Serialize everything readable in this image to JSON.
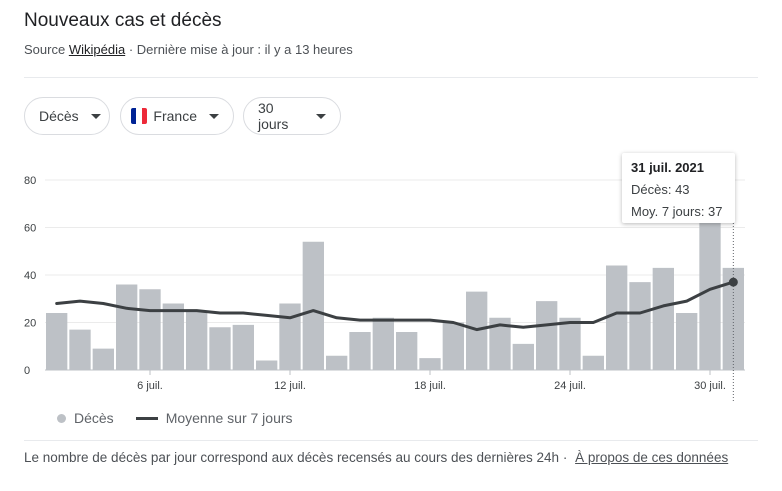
{
  "header": {
    "title": "Nouveaux cas et décès",
    "source_prefix": "Source",
    "source_link": "Wikipédia",
    "update_text": "· Dernière mise à jour : il y a 13 heures"
  },
  "filters": {
    "metric": "Décès",
    "country": "France",
    "period": "30 jours"
  },
  "colors": {
    "bar": "#bdc1c6",
    "line": "#3c4043",
    "flag_blue": "#002395",
    "flag_white": "#ffffff",
    "flag_red": "#ED2939"
  },
  "tooltip": {
    "date": "31 juil. 2021",
    "deaths": "Décès: 43",
    "avg": "Moy. 7 jours: 37"
  },
  "legend": {
    "bars": "Décès",
    "line": "Moyenne sur 7 jours"
  },
  "footer": {
    "text": "Le nombre de décès par jour correspond aux décès recensés au cours des dernières 24h  ·",
    "link": "À propos de ces données"
  },
  "chart_data": {
    "type": "bar",
    "title": "",
    "xlabel": "",
    "ylabel": "",
    "ylim": [
      0,
      80
    ],
    "yticks": [
      0,
      20,
      40,
      60,
      80
    ],
    "grid": true,
    "legend_position": "bottom-left",
    "categories": [
      "2 juil.",
      "3 juil.",
      "4 juil.",
      "5 juil.",
      "6 juil.",
      "7 juil.",
      "8 juil.",
      "9 juil.",
      "10 juil.",
      "11 juil.",
      "12 juil.",
      "13 juil.",
      "14 juil.",
      "15 juil.",
      "16 juil.",
      "17 juil.",
      "18 juil.",
      "19 juil.",
      "20 juil.",
      "21 juil.",
      "22 juil.",
      "23 juil.",
      "24 juil.",
      "25 juil.",
      "26 juil.",
      "27 juil.",
      "28 juil.",
      "29 juil.",
      "30 juil.",
      "31 juil."
    ],
    "xtick_labels": [
      "6 juil.",
      "12 juil.",
      "18 juil.",
      "24 juil.",
      "30 juil."
    ],
    "series": [
      {
        "name": "Décès",
        "kind": "bar",
        "values": [
          24,
          17,
          9,
          36,
          34,
          28,
          25,
          18,
          19,
          4,
          28,
          54,
          6,
          16,
          22,
          16,
          5,
          20,
          33,
          22,
          11,
          29,
          22,
          6,
          44,
          37,
          43,
          24,
          63,
          43
        ]
      },
      {
        "name": "Moyenne sur 7 jours",
        "kind": "line",
        "values": [
          28,
          29,
          28,
          26,
          25,
          25,
          25,
          24,
          24,
          23,
          22,
          25,
          22,
          21,
          21,
          21,
          21,
          20,
          17,
          19,
          18,
          19,
          20,
          20,
          24,
          24,
          27,
          29,
          34,
          37
        ]
      }
    ],
    "highlighted_index": 29
  }
}
